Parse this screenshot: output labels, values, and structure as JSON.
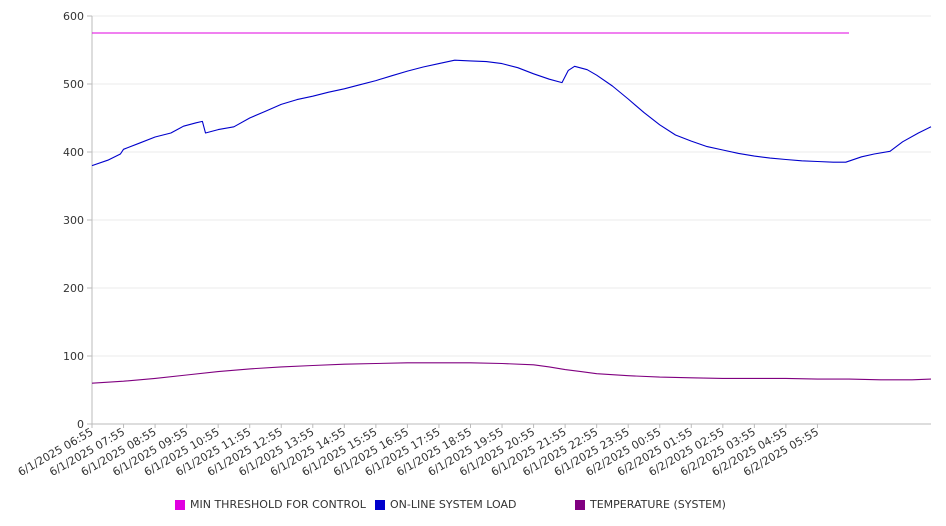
{
  "chart_data": {
    "type": "line",
    "title": "",
    "xlabel": "",
    "ylabel": "",
    "ylim": [
      0,
      600
    ],
    "yticks": [
      0,
      100,
      200,
      300,
      400,
      500,
      600
    ],
    "grid": true,
    "legend_position": "bottom",
    "categories": [
      "6/1/2025 06:55",
      "6/1/2025 07:55",
      "6/1/2025 08:55",
      "6/1/2025 09:55",
      "6/1/2025 10:55",
      "6/1/2025 11:55",
      "6/1/2025 12:55",
      "6/1/2025 13:55",
      "6/1/2025 14:55",
      "6/1/2025 15:55",
      "6/1/2025 16:55",
      "6/1/2025 17:55",
      "6/1/2025 18:55",
      "6/1/2025 19:55",
      "6/1/2025 20:55",
      "6/1/2025 21:55",
      "6/1/2025 22:55",
      "6/1/2025 23:55",
      "6/2/2025 00:55",
      "6/2/2025 01:55",
      "6/2/2025 02:55",
      "6/2/2025 03:55",
      "6/2/2025 04:55",
      "6/2/2025 05:55"
    ],
    "series": [
      {
        "name": "MIN THRESHOLD FOR CONTROL",
        "color": "#e000e0",
        "points": [
          [
            0,
            575
          ],
          [
            24,
            575
          ]
        ]
      },
      {
        "name": "ON-LINE SYSTEM LOAD",
        "color": "#0000cc",
        "points": [
          [
            0,
            380
          ],
          [
            0.5,
            388
          ],
          [
            0.9,
            397
          ],
          [
            1.0,
            404
          ],
          [
            1.5,
            413
          ],
          [
            2.0,
            422
          ],
          [
            2.5,
            428
          ],
          [
            2.9,
            438
          ],
          [
            3.3,
            443
          ],
          [
            3.5,
            445
          ],
          [
            3.6,
            428
          ],
          [
            4.0,
            433
          ],
          [
            4.5,
            437
          ],
          [
            5.0,
            450
          ],
          [
            5.5,
            460
          ],
          [
            6.0,
            470
          ],
          [
            6.5,
            477
          ],
          [
            7.0,
            482
          ],
          [
            7.5,
            488
          ],
          [
            8.0,
            493
          ],
          [
            8.5,
            499
          ],
          [
            9.0,
            505
          ],
          [
            9.5,
            512
          ],
          [
            10.0,
            519
          ],
          [
            10.5,
            525
          ],
          [
            11.0,
            530
          ],
          [
            11.5,
            535
          ],
          [
            12.0,
            534
          ],
          [
            12.5,
            533
          ],
          [
            13.0,
            530
          ],
          [
            13.5,
            524
          ],
          [
            14.0,
            515
          ],
          [
            14.5,
            507
          ],
          [
            14.9,
            502
          ],
          [
            15.1,
            520
          ],
          [
            15.3,
            526
          ],
          [
            15.7,
            521
          ],
          [
            16.0,
            513
          ],
          [
            16.5,
            497
          ],
          [
            17.0,
            478
          ],
          [
            17.5,
            458
          ],
          [
            18.0,
            440
          ],
          [
            18.5,
            425
          ],
          [
            19.0,
            416
          ],
          [
            19.5,
            408
          ],
          [
            20.0,
            403
          ],
          [
            20.5,
            398
          ],
          [
            21.0,
            394
          ],
          [
            21.5,
            391
          ],
          [
            22.0,
            389
          ],
          [
            22.5,
            387
          ],
          [
            23.0,
            386
          ],
          [
            23.5,
            385
          ],
          [
            23.9,
            385
          ],
          [
            24.4,
            393
          ],
          [
            24.8,
            397
          ],
          [
            25.3,
            401
          ],
          [
            25.7,
            415
          ],
          [
            26.2,
            428
          ],
          [
            26.6,
            437
          ]
        ]
      },
      {
        "name": "TEMPERATURE (SYSTEM)",
        "color": "#800080",
        "points": [
          [
            0,
            60
          ],
          [
            1.0,
            63
          ],
          [
            2.0,
            67
          ],
          [
            3.0,
            72
          ],
          [
            4.0,
            77
          ],
          [
            5.0,
            81
          ],
          [
            6.0,
            84
          ],
          [
            7.0,
            86
          ],
          [
            8.0,
            88
          ],
          [
            9.0,
            89
          ],
          [
            10.0,
            90
          ],
          [
            11.0,
            90
          ],
          [
            12.0,
            90
          ],
          [
            13.0,
            89
          ],
          [
            14.0,
            87
          ],
          [
            14.5,
            84
          ],
          [
            15.0,
            80
          ],
          [
            15.5,
            77
          ],
          [
            16.0,
            74
          ],
          [
            17.0,
            71
          ],
          [
            18.0,
            69
          ],
          [
            19.0,
            68
          ],
          [
            20.0,
            67
          ],
          [
            21.0,
            67
          ],
          [
            22.0,
            67
          ],
          [
            23.0,
            66
          ],
          [
            24.0,
            66
          ],
          [
            25.0,
            65
          ],
          [
            26.0,
            65
          ],
          [
            26.6,
            66
          ]
        ]
      }
    ]
  }
}
